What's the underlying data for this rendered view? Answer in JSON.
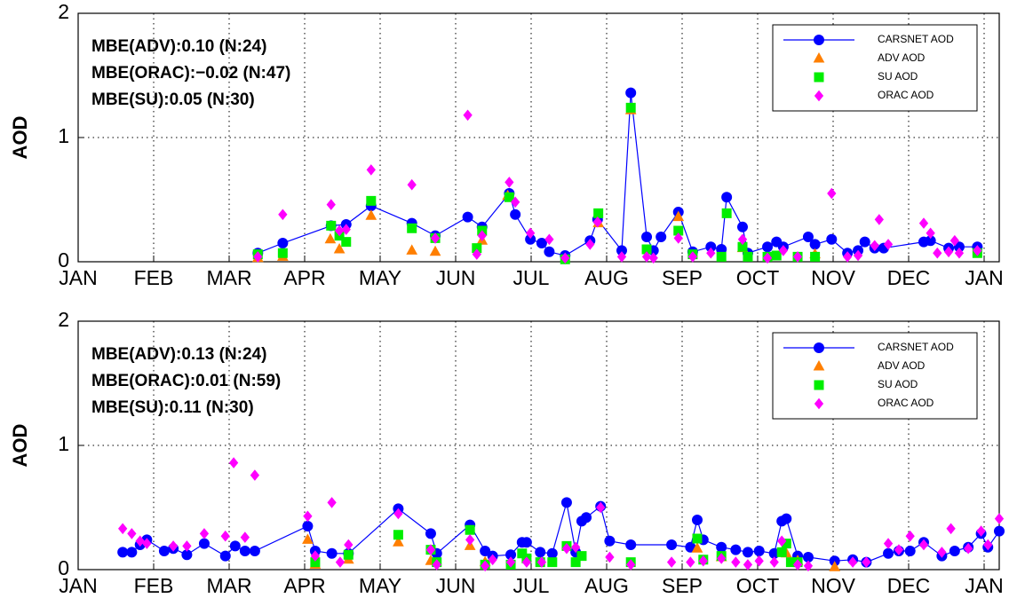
{
  "chart_data": [
    {
      "type": "line",
      "ylabel": "AOD",
      "ylim": [
        0,
        2
      ],
      "yticks": [
        0,
        1,
        2
      ],
      "xlim": [
        0,
        12.2
      ],
      "xticks": [
        {
          "value": 0,
          "label": "JAN"
        },
        {
          "value": 1,
          "label": "FEB"
        },
        {
          "value": 2,
          "label": "MAR"
        },
        {
          "value": 3,
          "label": "APR"
        },
        {
          "value": 4,
          "label": "MAY"
        },
        {
          "value": 5,
          "label": "JUN"
        },
        {
          "value": 6,
          "label": "JUL"
        },
        {
          "value": 7,
          "label": "AUG"
        },
        {
          "value": 8,
          "label": "SEP"
        },
        {
          "value": 9,
          "label": "OCT"
        },
        {
          "value": 10,
          "label": "NOV"
        },
        {
          "value": 11,
          "label": "DEC"
        },
        {
          "value": 12,
          "label": "JAN"
        }
      ],
      "grid": true,
      "legend": "upper right",
      "annotations": [
        "MBE(ADV):0.10 (N:24)",
        "MBE(ORAC):−0.02 (N:47)",
        "MBE(SU):0.05 (N:30)"
      ],
      "series": [
        {
          "name": "CARSNET AOD",
          "color": "#0000ff",
          "style": "line",
          "marker": "o",
          "x": [
            2.38,
            2.71,
            3.35,
            3.55,
            3.88,
            4.42,
            4.73,
            5.16,
            5.35,
            5.71,
            5.79,
            5.99,
            6.14,
            6.24,
            6.45,
            6.78,
            6.88,
            7.2,
            7.32,
            7.53,
            7.62,
            7.72,
            7.95,
            8.14,
            8.38,
            8.52,
            8.59,
            8.8,
            8.87,
            9.13,
            9.25,
            9.34,
            9.67,
            9.76,
            9.98,
            10.19,
            10.33,
            10.42,
            10.55,
            10.67,
            11.2,
            11.29,
            11.53,
            11.67,
            11.91
          ],
          "values": [
            0.07,
            0.15,
            0.29,
            0.3,
            0.45,
            0.31,
            0.21,
            0.36,
            0.28,
            0.55,
            0.38,
            0.18,
            0.15,
            0.08,
            0.05,
            0.17,
            0.34,
            0.09,
            1.36,
            0.2,
            0.09,
            0.2,
            0.4,
            0.08,
            0.12,
            0.1,
            0.52,
            0.28,
            0.07,
            0.12,
            0.16,
            0.12,
            0.2,
            0.14,
            0.18,
            0.07,
            0.09,
            0.16,
            0.11,
            0.11,
            0.16,
            0.17,
            0.11,
            0.12,
            0.12
          ]
        },
        {
          "name": "ADV AOD",
          "color": "#ff7f00",
          "style": "marker",
          "marker": "^",
          "x": [
            2.38,
            2.71,
            3.34,
            3.46,
            3.88,
            4.42,
            4.73,
            5.35,
            5.69,
            6.89,
            7.32,
            7.95,
            8.8,
            9.76
          ],
          "values": [
            0.03,
            0.04,
            0.18,
            0.1,
            0.37,
            0.09,
            0.08,
            0.17,
            0.53,
            0.31,
            1.22,
            0.36,
            0.11,
            0.06
          ]
        },
        {
          "name": "SU AOD",
          "color": "#00ee00",
          "style": "marker",
          "marker": "s",
          "x": [
            2.38,
            2.71,
            3.35,
            3.46,
            3.55,
            3.88,
            4.42,
            4.73,
            5.28,
            5.35,
            5.71,
            6.45,
            6.89,
            7.32,
            7.53,
            7.95,
            8.14,
            8.52,
            8.59,
            8.8,
            8.87,
            9.13,
            9.25,
            9.53,
            9.76,
            11.91
          ],
          "values": [
            0.06,
            0.07,
            0.29,
            0.21,
            0.16,
            0.49,
            0.27,
            0.19,
            0.11,
            0.25,
            0.52,
            0.02,
            0.39,
            1.24,
            0.1,
            0.25,
            0.06,
            0.04,
            0.39,
            0.12,
            0.04,
            0.04,
            0.05,
            0.04,
            0.04,
            0.07
          ]
        },
        {
          "name": "ORAC AOD",
          "color": "#ff00ff",
          "style": "marker",
          "marker": "D",
          "x": [
            2.38,
            2.71,
            3.35,
            3.46,
            3.55,
            3.88,
            4.42,
            4.73,
            5.16,
            5.28,
            5.35,
            5.71,
            5.79,
            5.99,
            6.24,
            6.45,
            6.78,
            6.88,
            7.2,
            7.53,
            7.62,
            7.95,
            8.14,
            8.38,
            8.8,
            9.13,
            9.34,
            9.53,
            9.98,
            10.19,
            10.33,
            10.55,
            10.61,
            10.73,
            11.2,
            11.29,
            11.38,
            11.53,
            11.61,
            11.67,
            11.91
          ],
          "values": [
            0.04,
            0.38,
            0.46,
            0.25,
            0.26,
            0.74,
            0.62,
            0.19,
            1.18,
            0.06,
            0.21,
            0.64,
            0.48,
            0.23,
            0.18,
            0.03,
            0.14,
            0.32,
            0.04,
            0.04,
            0.03,
            0.19,
            0.04,
            0.07,
            0.18,
            0.03,
            0.09,
            0.04,
            0.55,
            0.04,
            0.05,
            0.13,
            0.34,
            0.14,
            0.31,
            0.23,
            0.07,
            0.08,
            0.17,
            0.07,
            0.09
          ]
        }
      ]
    },
    {
      "type": "line",
      "ylabel": "AOD",
      "ylim": [
        0,
        2
      ],
      "yticks": [
        0,
        1,
        2
      ],
      "xlim": [
        0,
        12.2
      ],
      "xticks": [
        {
          "value": 0,
          "label": "JAN"
        },
        {
          "value": 1,
          "label": "FEB"
        },
        {
          "value": 2,
          "label": "MAR"
        },
        {
          "value": 3,
          "label": "APR"
        },
        {
          "value": 4,
          "label": "MAY"
        },
        {
          "value": 5,
          "label": "JUN"
        },
        {
          "value": 6,
          "label": "JUL"
        },
        {
          "value": 7,
          "label": "AUG"
        },
        {
          "value": 8,
          "label": "SEP"
        },
        {
          "value": 9,
          "label": "OCT"
        },
        {
          "value": 10,
          "label": "NOV"
        },
        {
          "value": 11,
          "label": "DEC"
        },
        {
          "value": 12,
          "label": "JAN"
        }
      ],
      "grid": true,
      "legend": "upper right",
      "annotations": [
        "MBE(ADV):0.13 (N:24)",
        "MBE(ORAC):0.01 (N:59)",
        "MBE(SU):0.11 (N:30)"
      ],
      "series": [
        {
          "name": "CARSNET AOD",
          "color": "#0000ff",
          "style": "line",
          "marker": "o",
          "x": [
            0.59,
            0.71,
            0.82,
            0.91,
            1.14,
            1.26,
            1.44,
            1.67,
            1.95,
            2.08,
            2.21,
            2.34,
            3.04,
            3.14,
            3.36,
            3.58,
            4.24,
            4.67,
            4.75,
            5.19,
            5.39,
            5.49,
            5.73,
            5.88,
            5.94,
            6.12,
            6.28,
            6.47,
            6.59,
            6.67,
            6.73,
            6.92,
            7.04,
            7.32,
            7.86,
            8.11,
            8.2,
            8.28,
            8.52,
            8.71,
            8.87,
            9.02,
            9.22,
            9.32,
            9.38,
            9.53,
            9.67,
            10.02,
            10.26,
            10.44,
            10.73,
            10.87,
            11.02,
            11.2,
            11.44,
            11.61,
            11.79,
            11.96,
            12.05,
            12.2
          ],
          "values": [
            0.14,
            0.14,
            0.2,
            0.24,
            0.15,
            0.17,
            0.12,
            0.21,
            0.11,
            0.19,
            0.15,
            0.15,
            0.35,
            0.15,
            0.13,
            0.13,
            0.49,
            0.29,
            0.13,
            0.36,
            0.15,
            0.11,
            0.12,
            0.22,
            0.22,
            0.14,
            0.13,
            0.54,
            0.14,
            0.39,
            0.42,
            0.51,
            0.23,
            0.2,
            0.2,
            0.18,
            0.4,
            0.24,
            0.18,
            0.16,
            0.14,
            0.15,
            0.13,
            0.39,
            0.41,
            0.11,
            0.1,
            0.07,
            0.08,
            0.06,
            0.13,
            0.15,
            0.15,
            0.22,
            0.11,
            0.15,
            0.18,
            0.29,
            0.18,
            0.31
          ]
        },
        {
          "name": "ADV AOD",
          "color": "#ff7f00",
          "style": "marker",
          "marker": "^",
          "x": [
            3.04,
            3.14,
            3.58,
            4.24,
            4.67,
            5.19,
            5.39,
            8.2,
            8.52,
            9.38,
            9.53,
            10.02
          ],
          "values": [
            0.24,
            0.04,
            0.08,
            0.22,
            0.07,
            0.19,
            0.06,
            0.17,
            0.1,
            0.13,
            0.07,
            0.02
          ]
        },
        {
          "name": "SU AOD",
          "color": "#00ee00",
          "style": "marker",
          "marker": "s",
          "x": [
            3.14,
            3.58,
            4.24,
            4.67,
            4.75,
            5.19,
            5.39,
            5.73,
            5.88,
            5.94,
            6.12,
            6.28,
            6.47,
            6.59,
            6.67,
            7.32,
            8.2,
            8.28,
            8.52,
            9.32,
            9.38,
            9.44,
            9.53
          ],
          "values": [
            0.06,
            0.12,
            0.28,
            0.16,
            0.06,
            0.32,
            0.04,
            0.04,
            0.13,
            0.09,
            0.06,
            0.06,
            0.19,
            0.06,
            0.11,
            0.06,
            0.25,
            0.08,
            0.11,
            0.14,
            0.21,
            0.06,
            0.06
          ]
        },
        {
          "name": "ORAC AOD",
          "color": "#ff00ff",
          "style": "marker",
          "marker": "D",
          "x": [
            0.59,
            0.71,
            0.82,
            0.91,
            1.26,
            1.44,
            1.67,
            1.95,
            2.06,
            2.21,
            2.34,
            3.04,
            3.14,
            3.36,
            3.47,
            3.58,
            4.24,
            4.67,
            4.75,
            5.19,
            5.39,
            5.49,
            5.73,
            5.94,
            6.14,
            6.47,
            6.59,
            6.92,
            7.04,
            7.32,
            7.86,
            8.11,
            8.28,
            8.52,
            8.71,
            8.87,
            9.02,
            9.22,
            9.32,
            9.53,
            9.67,
            10.26,
            10.44,
            10.73,
            10.87,
            11.02,
            11.2,
            11.44,
            11.56,
            11.79,
            11.96,
            12.05,
            12.2
          ],
          "values": [
            0.33,
            0.29,
            0.23,
            0.21,
            0.19,
            0.19,
            0.29,
            0.27,
            0.86,
            0.26,
            0.76,
            0.43,
            0.11,
            0.54,
            0.06,
            0.2,
            0.45,
            0.16,
            0.04,
            0.24,
            0.03,
            0.08,
            0.06,
            0.06,
            0.06,
            0.17,
            0.18,
            0.5,
            0.1,
            0.04,
            0.06,
            0.06,
            0.07,
            0.09,
            0.06,
            0.04,
            0.07,
            0.06,
            0.23,
            0.04,
            0.03,
            0.06,
            0.06,
            0.21,
            0.16,
            0.27,
            0.2,
            0.14,
            0.33,
            0.17,
            0.31,
            0.2,
            0.41
          ]
        }
      ]
    }
  ]
}
